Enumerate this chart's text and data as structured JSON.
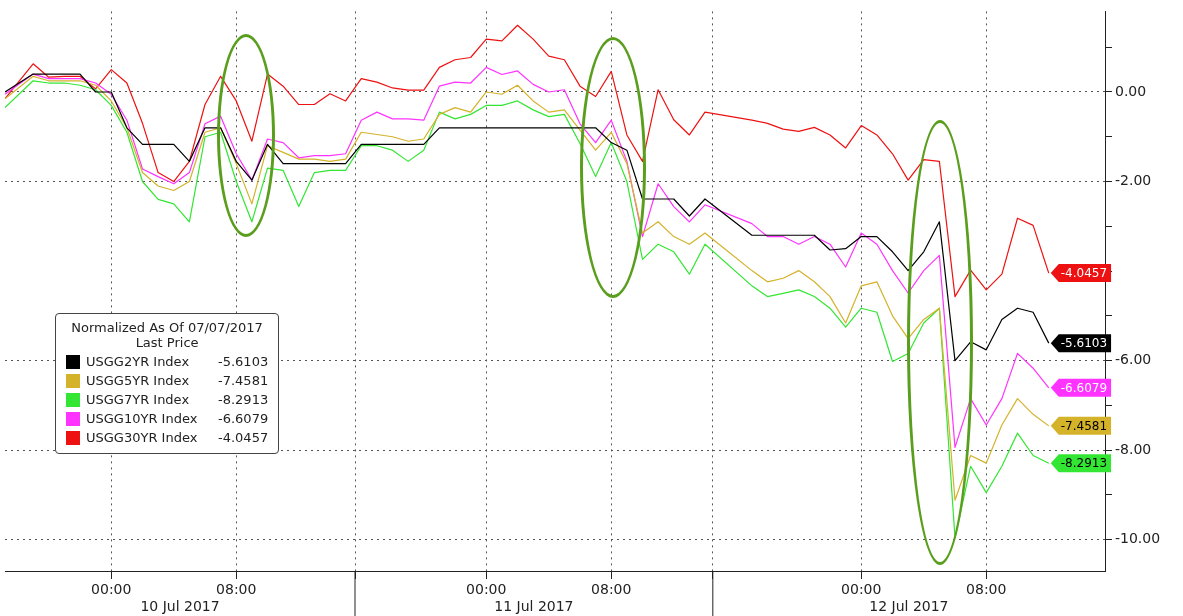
{
  "chart_data": {
    "type": "line",
    "x": [
      "2017-07-09T17:12",
      "2017-07-09T19:00",
      "2017-07-09T20:00",
      "2017-07-09T21:00",
      "2017-07-09T22:00",
      "2017-07-09T23:00",
      "2017-07-10T00:00",
      "2017-07-10T01:00",
      "2017-07-10T02:00",
      "2017-07-10T03:00",
      "2017-07-10T04:00",
      "2017-07-10T05:00",
      "2017-07-10T06:00",
      "2017-07-10T07:00",
      "2017-07-10T08:00",
      "2017-07-10T09:00",
      "2017-07-10T10:00",
      "2017-07-10T11:00",
      "2017-07-10T12:00",
      "2017-07-10T13:00",
      "2017-07-10T14:00",
      "2017-07-10T15:00",
      "2017-07-10T16:00",
      "2017-07-10T17:00",
      "2017-07-10T18:00",
      "2017-07-10T19:00",
      "2017-07-10T20:00",
      "2017-07-10T21:00",
      "2017-07-10T22:00",
      "2017-07-10T23:00",
      "2017-07-11T00:00",
      "2017-07-11T01:00",
      "2017-07-11T02:00",
      "2017-07-11T03:00",
      "2017-07-11T04:00",
      "2017-07-11T05:00",
      "2017-07-11T06:00",
      "2017-07-11T07:00",
      "2017-07-11T08:00",
      "2017-07-11T09:00",
      "2017-07-11T10:00",
      "2017-07-11T11:00",
      "2017-07-11T12:00",
      "2017-07-11T13:00",
      "2017-07-11T14:00",
      "2017-07-11T17:00",
      "2017-07-11T18:00",
      "2017-07-11T19:00",
      "2017-07-11T20:00",
      "2017-07-11T21:00",
      "2017-07-11T22:00",
      "2017-07-11T23:00",
      "2017-07-12T00:00",
      "2017-07-12T01:00",
      "2017-07-12T02:00",
      "2017-07-12T03:00",
      "2017-07-12T04:00",
      "2017-07-12T05:00",
      "2017-07-12T06:00",
      "2017-07-12T07:00",
      "2017-07-12T08:00",
      "2017-07-12T09:00",
      "2017-07-12T10:00",
      "2017-07-12T11:00",
      "2017-07-12T12:00"
    ],
    "series": [
      {
        "name": "USGG2YR Index",
        "color": "#000000",
        "values": [
          0,
          0.4,
          0.4,
          0.4,
          0.4,
          0,
          0,
          -0.8,
          -1.17,
          -1.17,
          -1.17,
          -1.55,
          -0.8,
          -0.8,
          -1.55,
          -1.97,
          -1.17,
          -1.6,
          -1.6,
          -1.6,
          -1.6,
          -1.6,
          -1.17,
          -1.17,
          -1.17,
          -1.17,
          -1.17,
          -0.8,
          -0.8,
          -0.8,
          -0.8,
          -0.8,
          -0.8,
          -0.8,
          -0.8,
          -0.8,
          -0.8,
          -0.8,
          -1.13,
          -1.3,
          -2.39,
          -2.39,
          -2.39,
          -2.77,
          -2.39,
          -3.2,
          -3.2,
          -3.2,
          -3.2,
          -3.2,
          -3.53,
          -3.5,
          -3.23,
          -3.23,
          -3.57,
          -3.99,
          -3.57,
          -2.9,
          -6.0,
          -5.58,
          -5.76,
          -5.08,
          -4.83,
          -4.92,
          -5.6103
        ],
        "value_labels": [
          null,
          null,
          null,
          null,
          null,
          null,
          null,
          null,
          null,
          null,
          null,
          null,
          null,
          null,
          null,
          null,
          null,
          null,
          null,
          null,
          null,
          null,
          null,
          null,
          null,
          null,
          null,
          null,
          null,
          null,
          null,
          null,
          null,
          null,
          null,
          null,
          null,
          null,
          null,
          null,
          null,
          null,
          null,
          null,
          null,
          null,
          null,
          null,
          null,
          null,
          null,
          null,
          null,
          null,
          null,
          null,
          null,
          null,
          null,
          null,
          null,
          null,
          null,
          null,
          "-5.6103"
        ]
      },
      {
        "name": "USGG5YR Index",
        "color": "#d4b22a",
        "values": [
          -0.15,
          0.35,
          0.25,
          0.25,
          0.25,
          0.15,
          -0.2,
          -0.8,
          -1.8,
          -2.1,
          -2.2,
          -2.0,
          -0.9,
          -0.8,
          -1.6,
          -2.5,
          -1.2,
          -1.35,
          -1.5,
          -1.5,
          -1.55,
          -1.5,
          -0.9,
          -0.95,
          -1.0,
          -1.1,
          -1.05,
          -0.5,
          -0.35,
          -0.45,
          0,
          -0.05,
          0.15,
          -0.2,
          -0.45,
          -0.4,
          -0.85,
          -1.3,
          -0.9,
          -1.6,
          -3.15,
          -2.9,
          -3.23,
          -3.4,
          -3.15,
          -3.99,
          -4.24,
          -4.16,
          -3.99,
          -4.24,
          -4.57,
          -5.16,
          -4.33,
          -4.24,
          -5.0,
          -5.51,
          -5.08,
          -4.83,
          -9.12,
          -8.12,
          -8.29,
          -7.44,
          -6.85,
          -7.2,
          -7.4581
        ],
        "value_labels": [
          null,
          null,
          null,
          null,
          null,
          null,
          null,
          null,
          null,
          null,
          null,
          null,
          null,
          null,
          null,
          null,
          null,
          null,
          null,
          null,
          null,
          null,
          null,
          null,
          null,
          null,
          null,
          null,
          null,
          null,
          null,
          null,
          null,
          null,
          null,
          null,
          null,
          null,
          null,
          null,
          null,
          null,
          null,
          null,
          null,
          null,
          null,
          null,
          null,
          null,
          null,
          null,
          null,
          null,
          null,
          null,
          null,
          null,
          null,
          null,
          null,
          null,
          null,
          null,
          "-7.4581"
        ]
      },
      {
        "name": "USGG7YR Index",
        "color": "#33e633",
        "values": [
          -0.35,
          0.25,
          0.2,
          0.2,
          0.15,
          0.05,
          -0.3,
          -0.9,
          -2.0,
          -2.4,
          -2.5,
          -2.9,
          -1.0,
          -0.9,
          -2.0,
          -2.9,
          -1.7,
          -1.75,
          -2.56,
          -1.8,
          -1.75,
          -1.75,
          -1.2,
          -1.2,
          -1.3,
          -1.55,
          -1.3,
          -0.45,
          -0.6,
          -0.5,
          -0.3,
          -0.3,
          -0.2,
          -0.4,
          -0.55,
          -0.5,
          -1.15,
          -1.89,
          -1.13,
          -2.0,
          -3.74,
          -3.4,
          -3.57,
          -4.07,
          -3.4,
          -4.33,
          -4.57,
          -4.5,
          -4.42,
          -4.57,
          -4.83,
          -5.25,
          -4.83,
          -4.92,
          -6.02,
          -5.84,
          -5.16,
          -4.83,
          -9.96,
          -8.36,
          -8.95,
          -8.36,
          -7.62,
          -8.12,
          -8.2913
        ],
        "value_labels": [
          null,
          null,
          null,
          null,
          null,
          null,
          null,
          null,
          null,
          null,
          null,
          null,
          null,
          null,
          null,
          null,
          null,
          null,
          null,
          null,
          null,
          null,
          null,
          null,
          null,
          null,
          null,
          null,
          null,
          null,
          null,
          null,
          null,
          null,
          null,
          null,
          null,
          null,
          null,
          null,
          null,
          null,
          null,
          null,
          null,
          null,
          null,
          null,
          null,
          null,
          null,
          null,
          null,
          null,
          null,
          null,
          null,
          null,
          null,
          null,
          null,
          null,
          null,
          null,
          "-8.2913"
        ]
      },
      {
        "name": "USGG10YR Index",
        "color": "#ff33ff",
        "values": [
          -0.05,
          0.4,
          0.3,
          0.3,
          0.3,
          0.2,
          -0.05,
          -0.63,
          -1.72,
          -1.89,
          -2.05,
          -1.8,
          -0.71,
          -0.54,
          -1.38,
          -1.97,
          -1.05,
          -1.13,
          -1.47,
          -1.42,
          -1.42,
          -1.38,
          -0.63,
          -0.45,
          -0.6,
          -0.6,
          -0.63,
          0.13,
          0.22,
          0.2,
          0.55,
          0.39,
          0.47,
          0.17,
          0,
          0.05,
          -0.71,
          -1.13,
          -0.63,
          -1.55,
          -3.23,
          -2.05,
          -2.56,
          -2.9,
          -2.52,
          -2.94,
          -3.23,
          -3.23,
          -3.4,
          -3.23,
          -3.4,
          -3.91,
          -3.15,
          -3.4,
          -3.99,
          -4.49,
          -3.99,
          -3.65,
          -7.94,
          -6.85,
          -7.44,
          -6.85,
          -5.84,
          -6.17,
          -6.6079
        ],
        "value_labels": [
          null,
          null,
          null,
          null,
          null,
          null,
          null,
          null,
          null,
          null,
          null,
          null,
          null,
          null,
          null,
          null,
          null,
          null,
          null,
          null,
          null,
          null,
          null,
          null,
          null,
          null,
          null,
          null,
          null,
          null,
          null,
          null,
          null,
          null,
          null,
          null,
          null,
          null,
          null,
          null,
          null,
          null,
          null,
          null,
          null,
          null,
          null,
          null,
          null,
          null,
          null,
          null,
          null,
          null,
          null,
          null,
          null,
          null,
          null,
          null,
          null,
          null,
          null,
          null,
          "-6.6079"
        ]
      },
      {
        "name": "USGG30YR Index",
        "color": "#ee1111",
        "values": [
          -0.15,
          0.63,
          0.33,
          0.35,
          0.35,
          0.07,
          0.5,
          0.2,
          -0.7,
          -1.8,
          -2.0,
          -1.55,
          -0.28,
          0.35,
          -0.2,
          -1.1,
          0.4,
          0.13,
          -0.28,
          -0.28,
          -0.04,
          -0.2,
          0.3,
          0.22,
          0.09,
          0.04,
          0.04,
          0.55,
          0.72,
          0.77,
          1.18,
          1.14,
          1.49,
          1.18,
          0.8,
          0.72,
          0.13,
          -0.1,
          0.46,
          -0.96,
          -1.55,
          0.05,
          -0.62,
          -0.96,
          -0.45,
          -0.63,
          -0.7,
          -0.83,
          -0.88,
          -0.79,
          -0.96,
          -1.25,
          -0.75,
          -0.96,
          -1.38,
          -1.97,
          -1.51,
          -1.55,
          -4.57,
          -3.98,
          -4.42,
          -4.07,
          -2.82,
          -2.98,
          -4.0457
        ],
        "value_labels": [
          null,
          null,
          null,
          null,
          null,
          null,
          null,
          null,
          null,
          null,
          null,
          null,
          null,
          null,
          null,
          null,
          null,
          null,
          null,
          null,
          null,
          null,
          null,
          null,
          null,
          null,
          null,
          null,
          null,
          null,
          null,
          null,
          null,
          null,
          null,
          null,
          null,
          null,
          null,
          null,
          null,
          null,
          null,
          null,
          null,
          null,
          null,
          null,
          null,
          null,
          null,
          null,
          null,
          null,
          null,
          null,
          null,
          null,
          null,
          null,
          null,
          null,
          null,
          null,
          "-4.0457"
        ]
      }
    ],
    "xlim": [
      "2017-07-09T17:12",
      "2017-07-12T15:36"
    ],
    "xticks": [
      {
        "value": "2017-07-10T00:00",
        "label": "00:00"
      },
      {
        "value": "2017-07-10T08:00",
        "label": "08:00"
      },
      {
        "value": "2017-07-10T15:36",
        "label": null
      },
      {
        "value": "2017-07-11T00:00",
        "label": "00:00"
      },
      {
        "value": "2017-07-11T08:00",
        "label": "08:00"
      },
      {
        "value": "2017-07-11T14:30",
        "label": null
      },
      {
        "value": "2017-07-12T00:00",
        "label": "00:00"
      },
      {
        "value": "2017-07-12T08:00",
        "label": "08:00"
      }
    ],
    "ylim": [
      -10.7,
      1.8
    ],
    "yticks": [
      {
        "value": -10,
        "label": "-10.00"
      },
      {
        "value": -9,
        "label": null
      },
      {
        "value": -8,
        "label": "-8.00"
      },
      {
        "value": -7,
        "label": null
      },
      {
        "value": -6,
        "label": "-6.00"
      },
      {
        "value": -5,
        "label": null
      },
      {
        "value": -4,
        "label": null
      },
      {
        "value": -3,
        "label": null
      },
      {
        "value": -2,
        "label": "-2.00"
      },
      {
        "value": -1,
        "label": null
      },
      {
        "value": 0,
        "label": "0.00"
      },
      {
        "value": 1,
        "label": null
      }
    ],
    "annotations": [
      "10 Jul 2017",
      "11 Jul 2017",
      "12 Jul 2017"
    ],
    "legend_title": "Normalized As Of 07/07/2017\nLast Price",
    "legend": "bottom left",
    "grid": true,
    "marker": "none",
    "line_style": "solid"
  }
}
